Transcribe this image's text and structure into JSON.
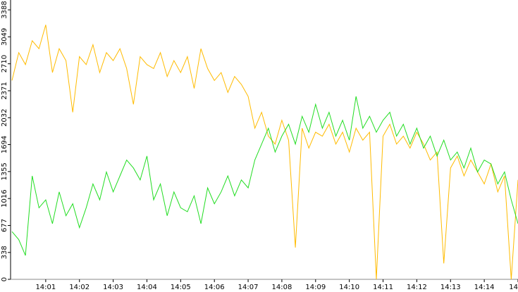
{
  "chart_data": {
    "type": "line",
    "x": [
      0,
      0.2,
      0.4,
      0.6,
      0.8,
      1,
      1.2,
      1.4,
      1.6,
      1.8,
      2,
      2.2,
      2.4,
      2.6,
      2.8,
      3,
      3.2,
      3.4,
      3.6,
      3.8,
      4,
      4.2,
      4.4,
      4.6,
      4.8,
      5,
      5.2,
      5.4,
      5.6,
      5.8,
      6,
      6.2,
      6.4,
      6.6,
      6.8,
      7,
      7.2,
      7.4,
      7.6,
      7.8,
      8,
      8.2,
      8.4,
      8.6,
      8.8,
      9,
      9.2,
      9.4,
      9.6,
      9.8,
      10,
      10.2,
      10.4,
      10.6,
      10.8,
      11,
      11.2,
      11.4,
      11.6,
      11.8,
      12,
      12.2,
      12.4,
      12.6,
      12.8,
      13,
      13.2,
      13.4,
      13.6,
      13.8,
      14,
      14.2,
      14.4,
      14.6,
      14.8,
      15
    ],
    "series": [
      {
        "color": "#ffbb00",
        "values": [
          2500,
          2850,
          2700,
          3000,
          2900,
          3200,
          2600,
          2900,
          2750,
          2100,
          2800,
          2700,
          2950,
          2600,
          2850,
          2750,
          2900,
          2650,
          2200,
          2800,
          2700,
          2650,
          2850,
          2550,
          2750,
          2600,
          2800,
          2400,
          2900,
          2650,
          2500,
          2600,
          2350,
          2550,
          2450,
          2300,
          1900,
          2100,
          1800,
          1700,
          2000,
          1750,
          400,
          1900,
          1650,
          1850,
          1800,
          1950,
          1700,
          1850,
          1600,
          1900,
          1750,
          1850,
          0,
          1800,
          1950,
          1700,
          1800,
          1650,
          1850,
          1700,
          1500,
          1600,
          200,
          1400,
          1550,
          1300,
          1500,
          1350,
          1200,
          1450,
          1100,
          1300,
          0,
          1250
        ]
      },
      {
        "color": "#22dd22",
        "values": [
          600,
          500,
          300,
          1300,
          900,
          1000,
          700,
          1100,
          800,
          950,
          650,
          900,
          1200,
          1000,
          1350,
          1100,
          1300,
          1500,
          1400,
          1250,
          1550,
          1000,
          1200,
          800,
          1100,
          900,
          850,
          1050,
          700,
          1150,
          950,
          1100,
          1300,
          1050,
          1250,
          1150,
          1500,
          1700,
          1900,
          1600,
          1800,
          1950,
          1700,
          2050,
          1850,
          2200,
          1900,
          2100,
          1800,
          2000,
          1750,
          2300,
          1900,
          2050,
          1850,
          2000,
          2100,
          1800,
          1950,
          1700,
          1900,
          1650,
          1800,
          1550,
          1750,
          1500,
          1600,
          1400,
          1650,
          1350,
          1500,
          1450,
          1200,
          1350,
          1000,
          700
        ]
      }
    ],
    "xlim": [
      0,
      15
    ],
    "xticks": [
      {
        "value": 1,
        "label": "14:01"
      },
      {
        "value": 2,
        "label": "14:02"
      },
      {
        "value": 3,
        "label": "14:03"
      },
      {
        "value": 4,
        "label": "14:04"
      },
      {
        "value": 5,
        "label": "14:05"
      },
      {
        "value": 6,
        "label": "14:06"
      },
      {
        "value": 7,
        "label": "14:07"
      },
      {
        "value": 8,
        "label": "14:08"
      },
      {
        "value": 9,
        "label": "14:09"
      },
      {
        "value": 10,
        "label": "14:10"
      },
      {
        "value": 11,
        "label": "14:11"
      },
      {
        "value": 12,
        "label": "14:12"
      },
      {
        "value": 13,
        "label": "14:13"
      },
      {
        "value": 14,
        "label": "14:14"
      },
      {
        "value": 15,
        "label": "14"
      }
    ],
    "ylim": [
      0,
      3512
    ],
    "yticks": [
      0,
      338,
      677,
      1016,
      1355,
      1694,
      2032,
      2371,
      2710,
      3049,
      3388
    ]
  }
}
